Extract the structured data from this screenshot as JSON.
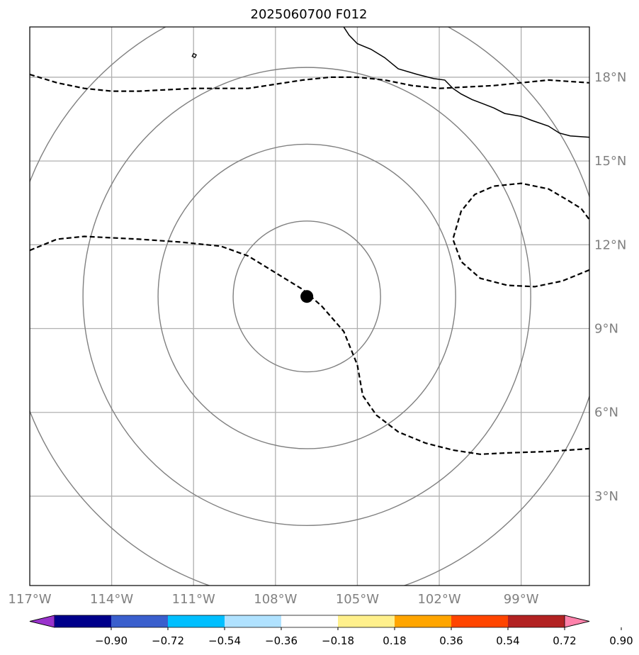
{
  "title": "2025060700 F012",
  "map": {
    "lon_range": [
      -117,
      -96.5
    ],
    "lat_range": [
      -0.2,
      19.8
    ],
    "lat_ticks": [
      {
        "value": 3,
        "label": "3°N"
      },
      {
        "value": 6,
        "label": "6°N"
      },
      {
        "value": 9,
        "label": "9°N"
      },
      {
        "value": 12,
        "label": "12°N"
      },
      {
        "value": 15,
        "label": "15°N"
      },
      {
        "value": 18,
        "label": "18°N"
      }
    ],
    "lon_ticks": [
      {
        "value": -117,
        "label": "117°W"
      },
      {
        "value": -114,
        "label": "114°W"
      },
      {
        "value": -111,
        "label": "111°W"
      },
      {
        "value": -108,
        "label": "108°W"
      },
      {
        "value": -105,
        "label": "105°W"
      },
      {
        "value": -102,
        "label": "102°W"
      },
      {
        "value": -99,
        "label": "99°W"
      }
    ],
    "storm_center": {
      "lon": -106.85,
      "lat": 10.15
    },
    "range_ring_radii_deg": [
      2.7,
      5.45,
      8.2,
      10.95
    ],
    "colors": {
      "grid": "#b0b0b0",
      "rings": "#808080",
      "coast": "#000000",
      "contour": "#000000",
      "marker": "#000000"
    },
    "coastline": [
      [
        -105.5,
        19.8
      ],
      [
        -105.3,
        19.5
      ],
      [
        -105.0,
        19.2
      ],
      [
        -104.5,
        19.0
      ],
      [
        -104.0,
        18.7
      ],
      [
        -103.5,
        18.3
      ],
      [
        -102.8,
        18.1
      ],
      [
        -102.2,
        17.95
      ],
      [
        -101.8,
        17.9
      ],
      [
        -101.5,
        17.6
      ],
      [
        -101.2,
        17.4
      ],
      [
        -100.8,
        17.2
      ],
      [
        -100.4,
        17.05
      ],
      [
        -100.0,
        16.9
      ],
      [
        -99.6,
        16.7
      ],
      [
        -99.0,
        16.6
      ],
      [
        -98.6,
        16.45
      ],
      [
        -98.0,
        16.25
      ],
      [
        -97.6,
        16.0
      ],
      [
        -97.2,
        15.9
      ],
      [
        -96.5,
        15.85
      ]
    ],
    "island": [
      [
        -111.0,
        18.85
      ],
      [
        -110.9,
        18.8
      ],
      [
        -110.95,
        18.7
      ],
      [
        -111.05,
        18.75
      ],
      [
        -111.0,
        18.85
      ]
    ],
    "contours": [
      [
        [
          -117.0,
          18.1
        ],
        [
          -116.0,
          17.8
        ],
        [
          -115.0,
          17.6
        ],
        [
          -114.0,
          17.5
        ],
        [
          -113.0,
          17.5
        ],
        [
          -111.0,
          17.6
        ],
        [
          -109.0,
          17.6
        ],
        [
          -107.0,
          17.9
        ],
        [
          -106.0,
          18.0
        ],
        [
          -105.0,
          18.0
        ],
        [
          -104.0,
          17.9
        ],
        [
          -103.0,
          17.7
        ],
        [
          -102.0,
          17.6
        ],
        [
          -100.0,
          17.7
        ],
        [
          -98.0,
          17.9
        ],
        [
          -96.5,
          17.8
        ]
      ],
      [
        [
          -117.0,
          11.8
        ],
        [
          -116.0,
          12.2
        ],
        [
          -115.0,
          12.3
        ],
        [
          -113.0,
          12.2
        ],
        [
          -111.5,
          12.1
        ],
        [
          -110.0,
          11.95
        ],
        [
          -109.0,
          11.6
        ],
        [
          -108.0,
          11.0
        ],
        [
          -107.0,
          10.4
        ],
        [
          -106.3,
          9.8
        ],
        [
          -105.5,
          8.9
        ],
        [
          -105.0,
          7.7
        ],
        [
          -104.8,
          6.6
        ],
        [
          -104.3,
          5.9
        ],
        [
          -103.5,
          5.3
        ],
        [
          -102.5,
          4.9
        ],
        [
          -101.5,
          4.65
        ],
        [
          -100.5,
          4.5
        ],
        [
          -99.5,
          4.55
        ],
        [
          -98.0,
          4.6
        ],
        [
          -96.5,
          4.7
        ]
      ],
      [
        [
          -96.5,
          11.1
        ],
        [
          -97.5,
          10.7
        ],
        [
          -98.5,
          10.5
        ],
        [
          -99.5,
          10.55
        ],
        [
          -100.5,
          10.8
        ],
        [
          -101.2,
          11.4
        ],
        [
          -101.5,
          12.2
        ],
        [
          -101.2,
          13.2
        ],
        [
          -100.7,
          13.8
        ],
        [
          -100.0,
          14.1
        ],
        [
          -99.0,
          14.2
        ],
        [
          -98.0,
          14.0
        ],
        [
          -97.3,
          13.6
        ],
        [
          -96.8,
          13.3
        ],
        [
          -96.5,
          12.9
        ]
      ]
    ]
  },
  "colorbar": {
    "colors": [
      "#9932cc",
      "#00008b",
      "#3a5fcd",
      "#00bfff",
      "#b0e2ff",
      "#ffffff",
      "#fff08c",
      "#ffa500",
      "#ff4500",
      "#b22222",
      "#ff82ab"
    ],
    "tick_labels": [
      "−0.90",
      "−0.72",
      "−0.54",
      "−0.36",
      "−0.18",
      "0.18",
      "0.36",
      "0.54",
      "0.72",
      "0.90"
    ]
  }
}
